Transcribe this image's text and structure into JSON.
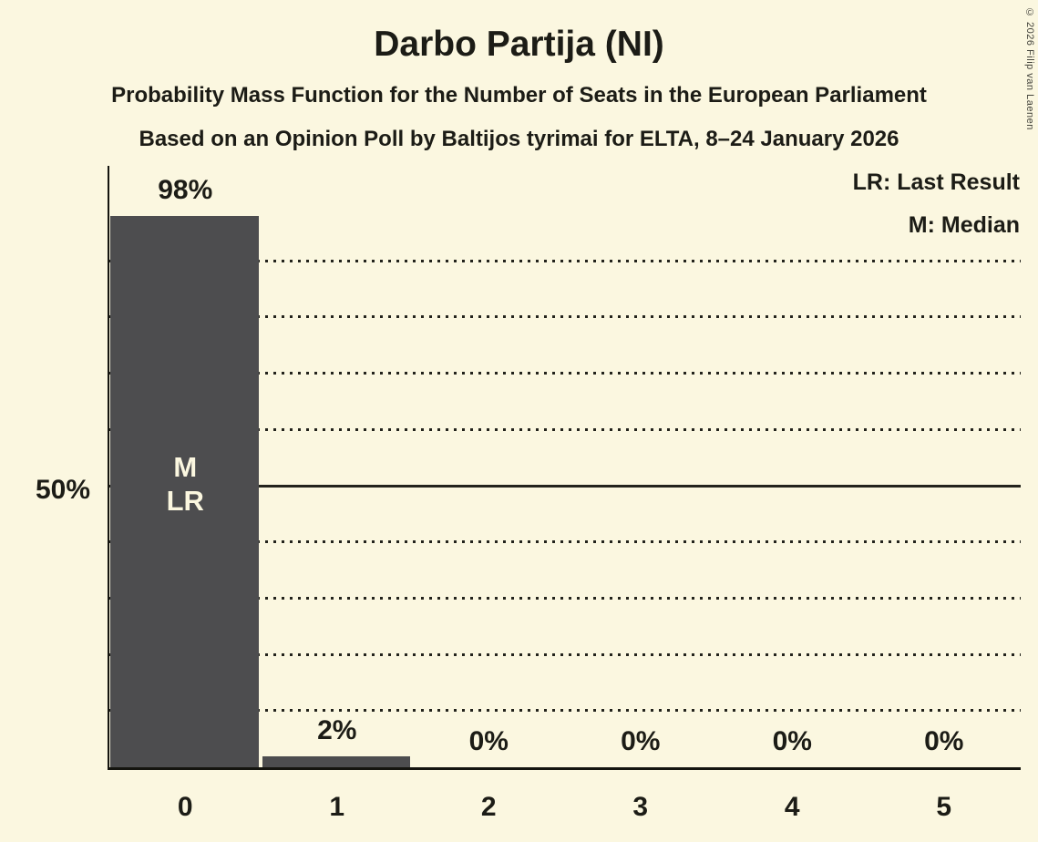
{
  "window": {
    "background": "#FBF7E0",
    "text_color": "#1C1C16"
  },
  "header": {
    "title": "Darbo Partija (NI)",
    "subtitle": "Probability Mass Function for the Number of Seats in the European Parliament",
    "source_line": "Based on an Opinion Poll by Baltijos tyrimai for ELTA, 8–24 January 2026"
  },
  "legend": {
    "last_result": "LR: Last Result",
    "median": "M: Median"
  },
  "copyright": "© 2026 Filip van Laenen",
  "chart_data": {
    "type": "bar",
    "title": "Darbo Partija (NI)",
    "categories": [
      "0",
      "1",
      "2",
      "3",
      "4",
      "5"
    ],
    "values": [
      98,
      2,
      0,
      0,
      0,
      0
    ],
    "value_labels": [
      "98%",
      "2%",
      "0%",
      "0%",
      "0%",
      "0%"
    ],
    "xlabel": "",
    "ylabel": "",
    "ylim": [
      0,
      100
    ],
    "y_tick_labels": [
      {
        "pct": 50,
        "label": "50%"
      }
    ],
    "gridlines": {
      "dotted_pct": [
        10,
        20,
        30,
        40,
        60,
        70,
        80,
        90
      ],
      "solid_pct": 50
    },
    "legend_position": "top-right",
    "grid_on": true,
    "bar_color": "#4D4D4F",
    "bar_annotation_color": "#FBF7E0",
    "annotations": [
      {
        "column": 0,
        "lines": [
          "M",
          "LR"
        ]
      }
    ]
  }
}
